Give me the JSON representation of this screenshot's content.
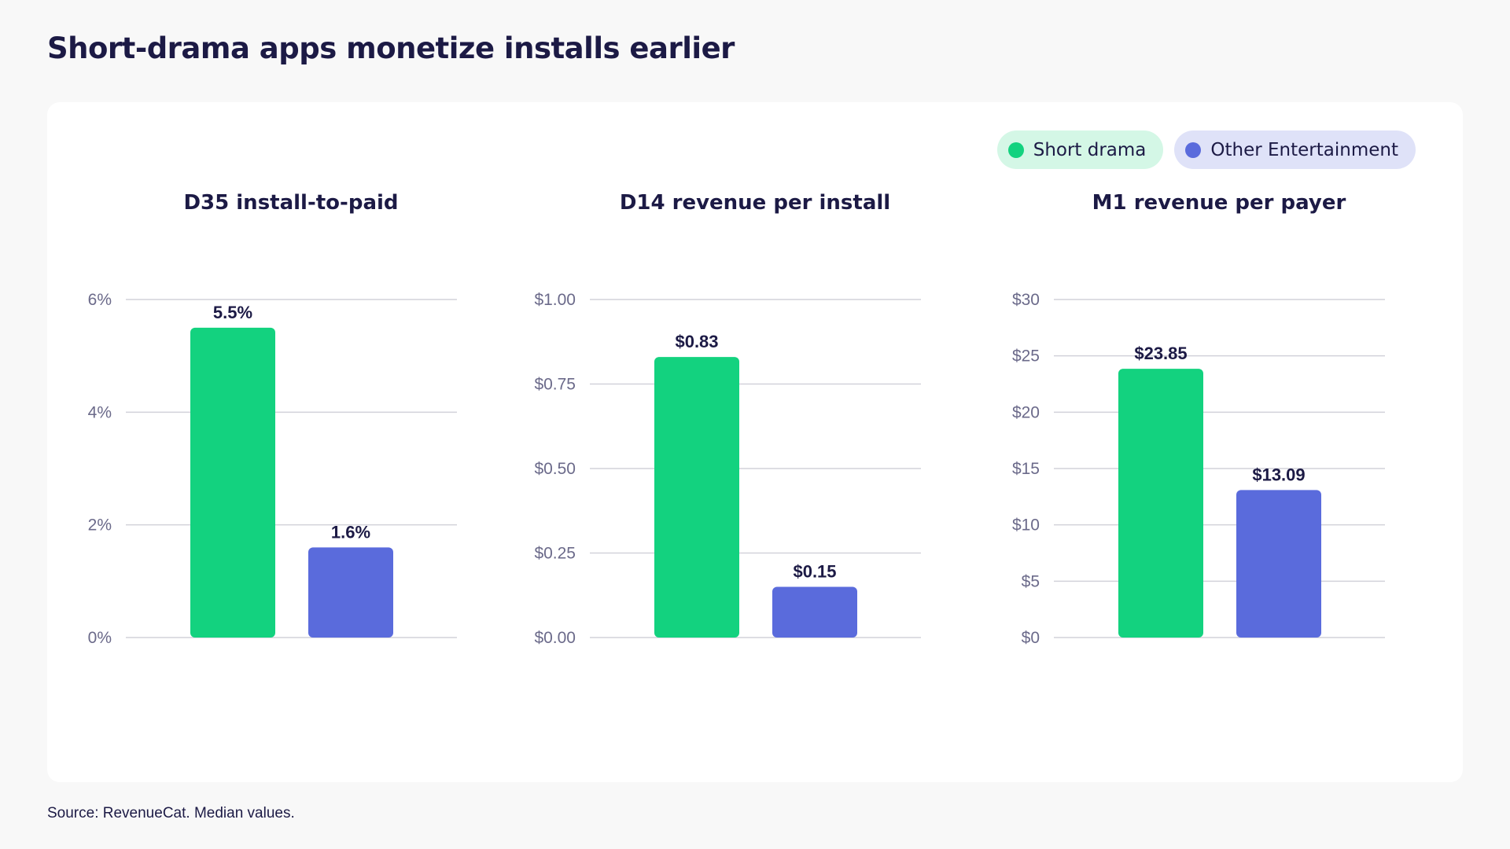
{
  "page": {
    "title": "Short-drama apps monetize installs earlier",
    "source": "Source: RevenueCat. Median values."
  },
  "legend": [
    {
      "label": "Short drama",
      "color": "#13d27f",
      "bg": "#d4f7e6"
    },
    {
      "label": "Other Entertainment",
      "color": "#5a6bdc",
      "bg": "#dfe2f8"
    }
  ],
  "chart_data": [
    {
      "type": "bar",
      "title": "D35 install-to-paid",
      "categories": [
        "Short drama",
        "Other Entertainment"
      ],
      "values": [
        5.5,
        1.6
      ],
      "value_labels": [
        "5.5%",
        "1.6%"
      ],
      "yticks": [
        0,
        2,
        4,
        6
      ],
      "ytick_labels": [
        "0%",
        "2%",
        "4%",
        "6%"
      ],
      "ylim": [
        0,
        6
      ],
      "grid": true
    },
    {
      "type": "bar",
      "title": "D14 revenue per install",
      "categories": [
        "Short drama",
        "Other Entertainment"
      ],
      "values": [
        0.83,
        0.15
      ],
      "value_labels": [
        "$0.83",
        "$0.15"
      ],
      "yticks": [
        0,
        0.25,
        0.5,
        0.75,
        1.0
      ],
      "ytick_labels": [
        "$0.00",
        "$0.25",
        "$0.50",
        "$0.75",
        "$1.00"
      ],
      "ylim": [
        0,
        1.0
      ],
      "grid": true
    },
    {
      "type": "bar",
      "title": "M1 revenue per payer",
      "categories": [
        "Short drama",
        "Other Entertainment"
      ],
      "values": [
        23.85,
        13.09
      ],
      "value_labels": [
        "$23.85",
        "$13.09"
      ],
      "yticks": [
        0,
        5,
        10,
        15,
        20,
        25,
        30
      ],
      "ytick_labels": [
        "$0",
        "$5",
        "$10",
        "$15",
        "$20",
        "$25",
        "$30"
      ],
      "ylim": [
        0,
        30
      ],
      "grid": true
    }
  ]
}
